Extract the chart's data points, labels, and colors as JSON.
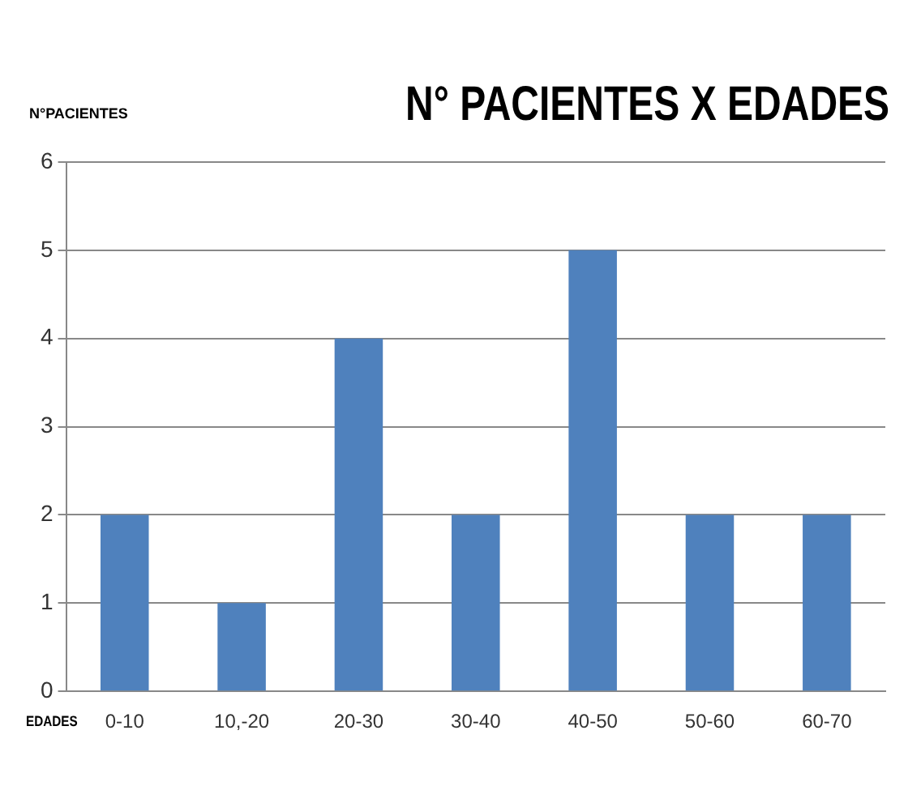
{
  "chart_data": {
    "type": "bar",
    "title": "N° PACIENTES X EDADES",
    "ylabel": "N°PACIENTES",
    "xlabel": "EDADES",
    "categories": [
      "0-10",
      "10,-20",
      "20-30",
      "30-40",
      "40-50",
      "50-60",
      "60-70"
    ],
    "values": [
      2,
      1,
      4,
      2,
      5,
      2,
      2
    ],
    "color": "#4f81bd",
    "ylim": [
      0,
      6
    ],
    "yticks": [
      0,
      1,
      2,
      3,
      4,
      5,
      6
    ],
    "grid": "y",
    "legend": false
  }
}
